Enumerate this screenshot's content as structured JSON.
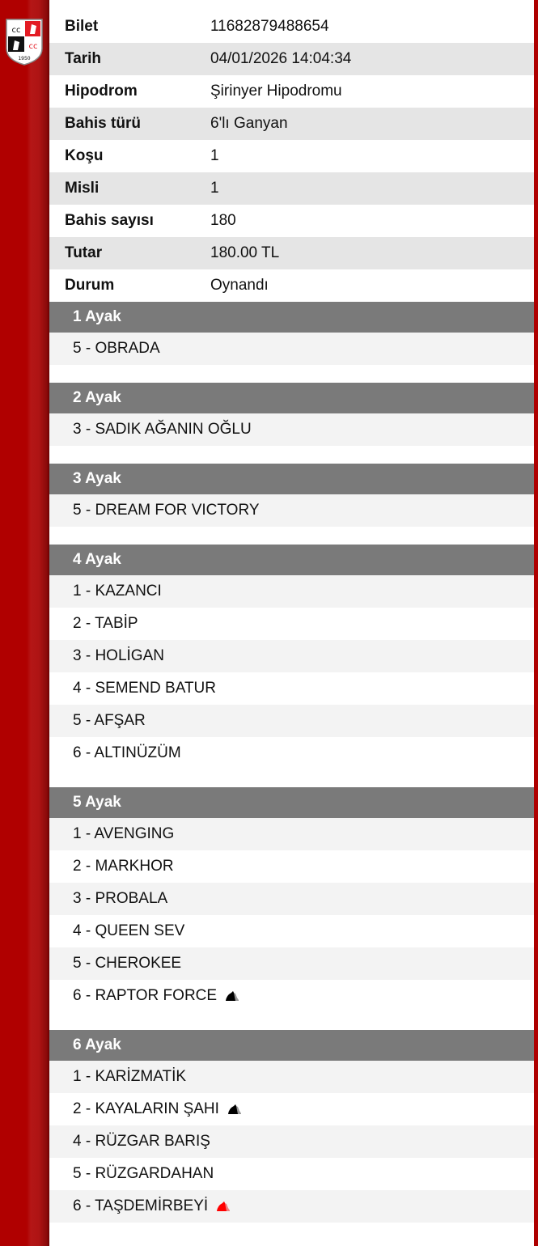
{
  "logo": {
    "text": "CC CC 1950"
  },
  "info": [
    {
      "label": "Bilet",
      "value": "11682879488654"
    },
    {
      "label": "Tarih",
      "value": "04/01/2026 14:04:34"
    },
    {
      "label": "Hipodrom",
      "value": "Şirinyer Hipodromu"
    },
    {
      "label": "Bahis türü",
      "value": "6'lı Ganyan"
    },
    {
      "label": "Koşu",
      "value": "1"
    },
    {
      "label": "Misli",
      "value": "1"
    },
    {
      "label": "Bahis sayısı",
      "value": "180"
    },
    {
      "label": "Tutar",
      "value": "180.00 TL"
    },
    {
      "label": "Durum",
      "value": "Oynandı"
    }
  ],
  "legs": [
    {
      "title": "1 Ayak",
      "items": [
        {
          "text": "5 - OBRADA"
        }
      ]
    },
    {
      "title": "2 Ayak",
      "items": [
        {
          "text": "3 - SADIK AĞANIN OĞLU"
        }
      ]
    },
    {
      "title": "3 Ayak",
      "items": [
        {
          "text": "5 - DREAM FOR VICTORY"
        }
      ]
    },
    {
      "title": "4 Ayak",
      "items": [
        {
          "text": "1 - KAZANCI"
        },
        {
          "text": "2 - TABİP"
        },
        {
          "text": "3 - HOLİGAN"
        },
        {
          "text": "4 - SEMEND BATUR"
        },
        {
          "text": "5 - AFŞAR"
        },
        {
          "text": "6 - ALTINÜZÜM"
        }
      ]
    },
    {
      "title": "5 Ayak",
      "items": [
        {
          "text": "1 - AVENGING"
        },
        {
          "text": "2 - MARKHOR"
        },
        {
          "text": "3 - PROBALA"
        },
        {
          "text": "4 - QUEEN SEV"
        },
        {
          "text": "5 - CHEROKEE"
        },
        {
          "text": "6 - RAPTOR FORCE",
          "icon": "horse-head-icon",
          "icon_color": "#000000"
        }
      ]
    },
    {
      "title": "6 Ayak",
      "items": [
        {
          "text": "1 - KARİZMATİK"
        },
        {
          "text": "2 - KAYALARIN ŞAHI",
          "icon": "horse-head-icon",
          "icon_color": "#000000"
        },
        {
          "text": "4 - RÜZGAR BARIŞ"
        },
        {
          "text": "5 - RÜZGARDAHAN"
        },
        {
          "text": "6 - TAŞDEMİRBEYİ",
          "icon": "horse-head-icon",
          "icon_color": "#ff0000"
        }
      ]
    }
  ]
}
